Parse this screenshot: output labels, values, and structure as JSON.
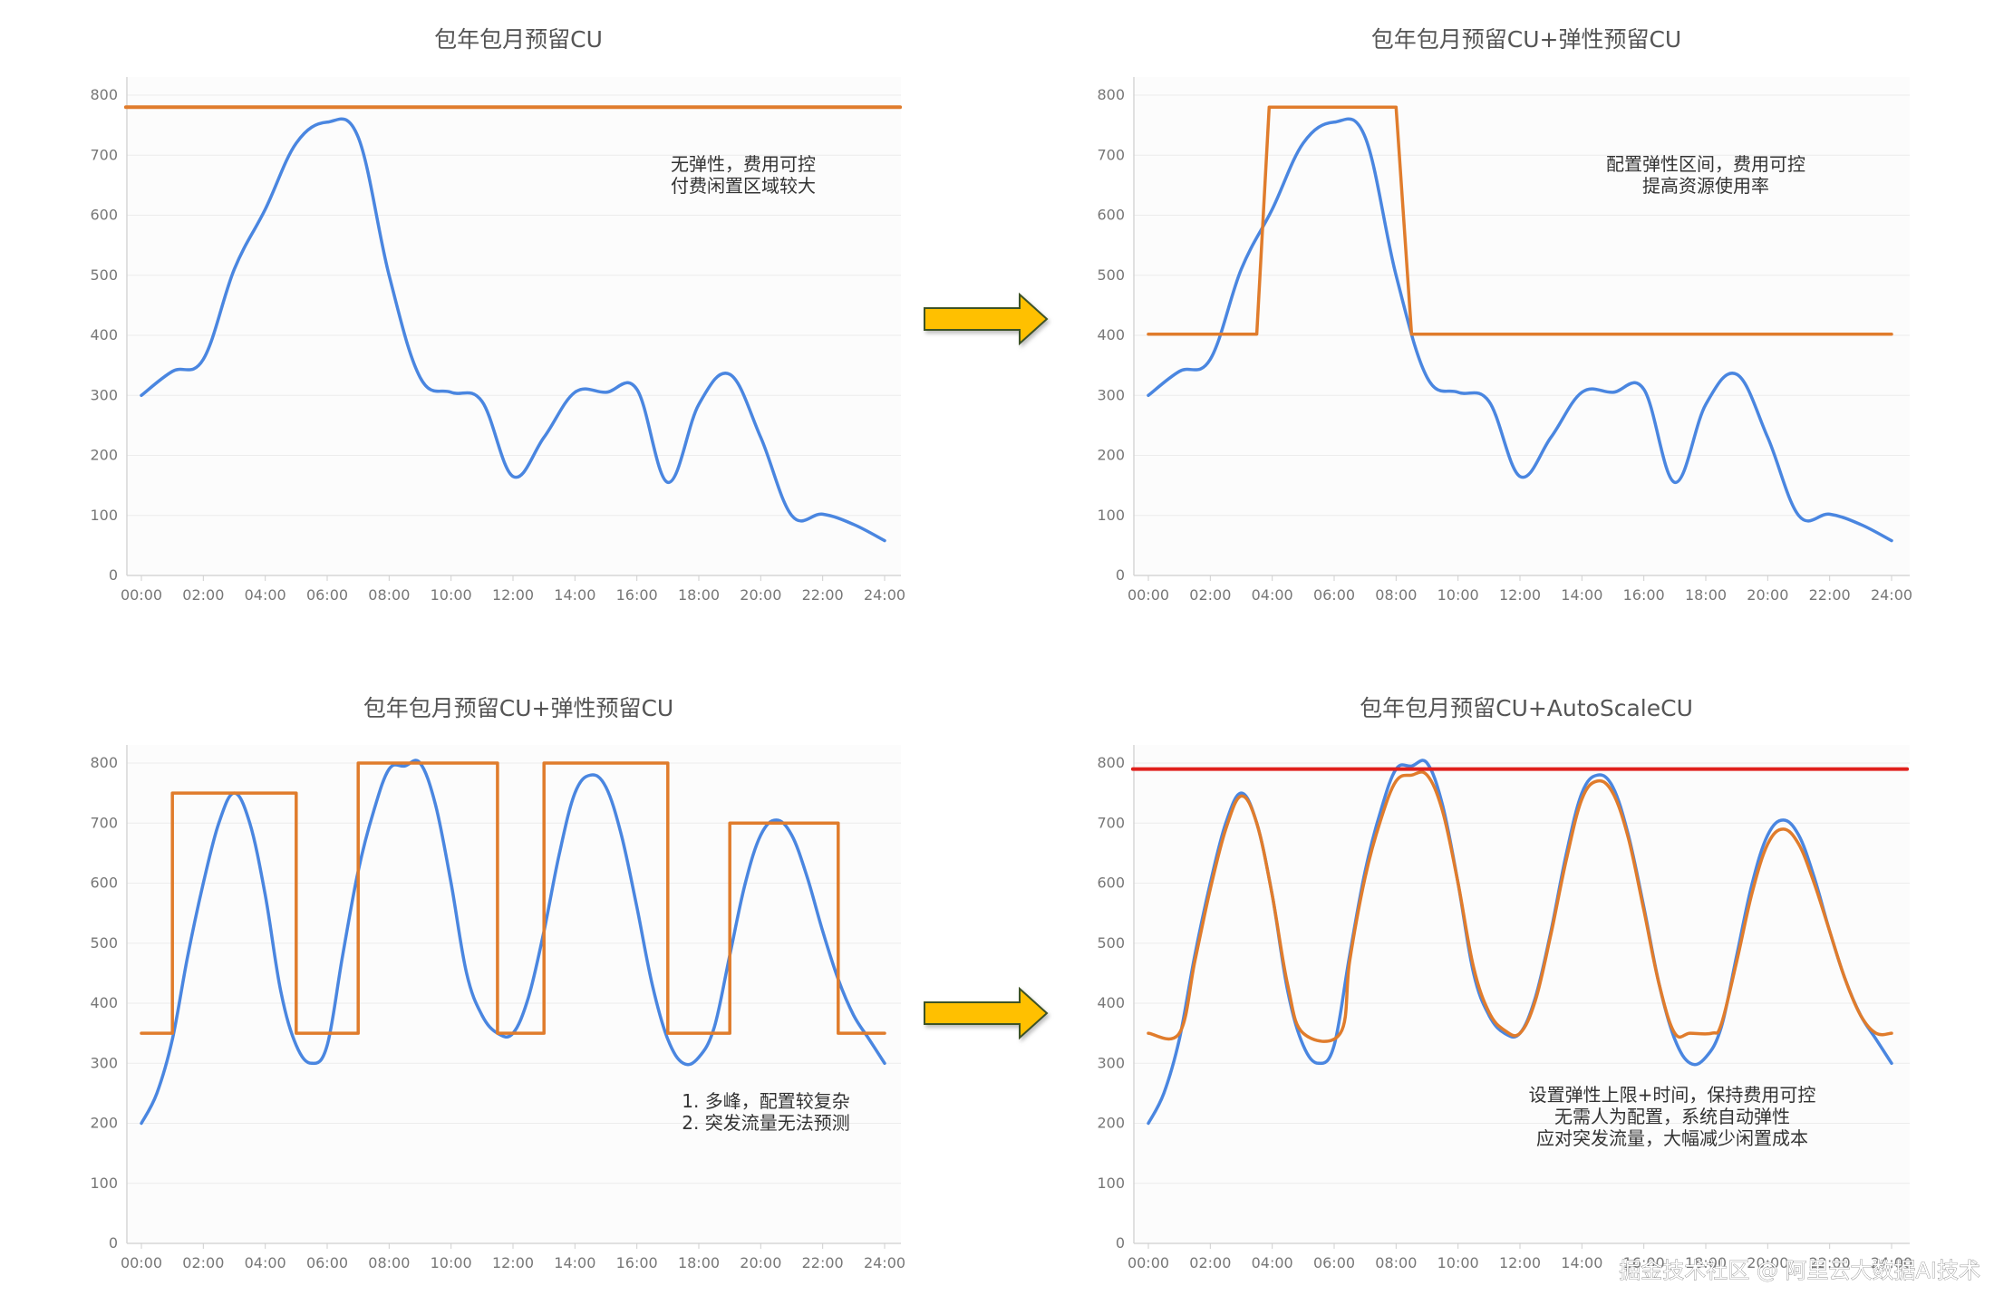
{
  "chart_data": [
    {
      "type": "line",
      "title": "包年包月预留CU",
      "ylim": [
        0,
        800
      ],
      "yticks": [
        "0",
        "100",
        "200",
        "300",
        "400",
        "500",
        "600",
        "700",
        "800"
      ],
      "xticks": [
        "00:00",
        "02:00",
        "04:00",
        "06:00",
        "08:00",
        "10:00",
        "12:00",
        "14:00",
        "16:00",
        "18:00",
        "20:00",
        "22:00",
        "24:00"
      ],
      "annotation": [
        "无弹性，费用可控",
        "付费闲置区域较大"
      ],
      "series": [
        {
          "role": "usage",
          "color": "#4a86e0",
          "shape": "smooth",
          "x": [
            0,
            1,
            2,
            3,
            4,
            5,
            6,
            7,
            8,
            9,
            10,
            11,
            12,
            13,
            14,
            15,
            16,
            17,
            18,
            19,
            20,
            21,
            22,
            23,
            24
          ],
          "y": [
            300,
            340,
            360,
            510,
            610,
            720,
            755,
            730,
            500,
            330,
            305,
            290,
            165,
            230,
            305,
            305,
            310,
            155,
            285,
            335,
            230,
            100,
            102,
            85,
            58
          ]
        },
        {
          "role": "reserved",
          "color": "#e07c2c",
          "shape": "linear",
          "x": [
            -0.5,
            24.5
          ],
          "y": [
            780,
            780
          ]
        }
      ]
    },
    {
      "type": "line",
      "title": "包年包月预留CU+弹性预留CU",
      "ylim": [
        0,
        800
      ],
      "yticks": [
        "0",
        "100",
        "200",
        "300",
        "400",
        "500",
        "600",
        "700",
        "800"
      ],
      "xticks": [
        "00:00",
        "02:00",
        "04:00",
        "06:00",
        "08:00",
        "10:00",
        "12:00",
        "14:00",
        "16:00",
        "18:00",
        "20:00",
        "22:00",
        "24:00"
      ],
      "annotation": [
        "配置弹性区间，费用可控",
        "提高资源使用率"
      ],
      "series": [
        {
          "role": "usage",
          "color": "#4a86e0",
          "shape": "smooth",
          "x": [
            0,
            1,
            2,
            3,
            4,
            5,
            6,
            7,
            8,
            9,
            10,
            11,
            12,
            13,
            14,
            15,
            16,
            17,
            18,
            19,
            20,
            21,
            22,
            23,
            24
          ],
          "y": [
            300,
            340,
            360,
            510,
            610,
            720,
            755,
            730,
            500,
            330,
            305,
            290,
            165,
            230,
            305,
            305,
            310,
            155,
            285,
            335,
            230,
            100,
            102,
            85,
            58
          ]
        },
        {
          "role": "reserved",
          "color": "#e07c2c",
          "shape": "linear",
          "x": [
            0,
            3.5,
            3.9,
            8.0,
            8.5,
            24
          ],
          "y": [
            402,
            402,
            780,
            780,
            402,
            402
          ]
        }
      ]
    },
    {
      "type": "line",
      "title": "包年包月预留CU+弹性预留CU",
      "ylim": [
        0,
        800
      ],
      "yticks": [
        "0",
        "100",
        "200",
        "300",
        "400",
        "500",
        "600",
        "700",
        "800"
      ],
      "xticks": [
        "00:00",
        "02:00",
        "04:00",
        "06:00",
        "08:00",
        "10:00",
        "12:00",
        "14:00",
        "16:00",
        "18:00",
        "20:00",
        "22:00",
        "24:00"
      ],
      "annotation": [
        "1. 多峰，配置较复杂",
        "2. 突发流量无法预测"
      ],
      "series": [
        {
          "role": "usage",
          "color": "#4a86e0",
          "shape": "smooth",
          "x": [
            0,
            0.5,
            1,
            1.5,
            2,
            2.5,
            3,
            3.5,
            4,
            4.5,
            5,
            5.5,
            6,
            6.5,
            7,
            7.5,
            8,
            8.5,
            9,
            9.5,
            10,
            10.5,
            11,
            11.5,
            12,
            12.5,
            13,
            13.5,
            14,
            14.5,
            15,
            15.5,
            16,
            16.5,
            17,
            17.5,
            18,
            18.5,
            19,
            19.5,
            20,
            20.5,
            21,
            21.5,
            22,
            22.5,
            23,
            23.5,
            24
          ],
          "y": [
            200,
            250,
            340,
            480,
            600,
            700,
            750,
            700,
            580,
            420,
            330,
            300,
            330,
            480,
            620,
            720,
            790,
            795,
            800,
            730,
            600,
            450,
            380,
            350,
            350,
            410,
            520,
            650,
            750,
            780,
            760,
            680,
            560,
            430,
            340,
            300,
            310,
            360,
            480,
            600,
            680,
            705,
            680,
            610,
            520,
            440,
            380,
            340,
            300
          ]
        },
        {
          "role": "reserved",
          "color": "#e07c2c",
          "shape": "linear",
          "x": [
            0,
            1,
            1,
            5,
            5,
            7,
            7,
            11.5,
            11.5,
            13,
            13,
            17,
            17,
            19,
            19,
            22.5,
            22.5,
            24
          ],
          "y": [
            350,
            350,
            750,
            750,
            350,
            350,
            800,
            800,
            350,
            350,
            800,
            800,
            350,
            350,
            700,
            700,
            350,
            350
          ]
        }
      ]
    },
    {
      "type": "line",
      "title": "包年包月预留CU+AutoScaleCU",
      "ylim": [
        0,
        800
      ],
      "yticks": [
        "0",
        "100",
        "200",
        "300",
        "400",
        "500",
        "600",
        "700",
        "800"
      ],
      "xticks": [
        "00:00",
        "02:00",
        "04:00",
        "06:00",
        "08:00",
        "10:00",
        "12:00",
        "14:00",
        "16:00",
        "18:00",
        "20:00",
        "22:00",
        "24:00"
      ],
      "annotation": [
        "设置弹性上限+时间，保持费用可控",
        "无需人为配置，系统自动弹性",
        "应对突发流量，大幅减少闲置成本"
      ],
      "series": [
        {
          "role": "usage",
          "color": "#4a86e0",
          "shape": "smooth",
          "x": [
            0,
            0.5,
            1,
            1.5,
            2,
            2.5,
            3,
            3.5,
            4,
            4.5,
            5,
            5.5,
            6,
            6.5,
            7,
            7.5,
            8,
            8.5,
            9,
            9.5,
            10,
            10.5,
            11,
            11.5,
            12,
            12.5,
            13,
            13.5,
            14,
            14.5,
            15,
            15.5,
            16,
            16.5,
            17,
            17.5,
            18,
            18.5,
            19,
            19.5,
            20,
            20.5,
            21,
            21.5,
            22,
            22.5,
            23,
            23.5,
            24
          ],
          "y": [
            200,
            250,
            340,
            480,
            600,
            700,
            750,
            700,
            580,
            420,
            330,
            300,
            330,
            480,
            620,
            720,
            790,
            795,
            800,
            730,
            600,
            450,
            380,
            350,
            350,
            410,
            520,
            650,
            750,
            780,
            760,
            680,
            560,
            430,
            340,
            300,
            310,
            360,
            480,
            600,
            680,
            705,
            680,
            610,
            520,
            440,
            380,
            340,
            300
          ]
        },
        {
          "role": "autoscale",
          "color": "#e07c2c",
          "shape": "smooth",
          "x": [
            0,
            1,
            1.5,
            2,
            2.5,
            3,
            3.5,
            4,
            4.5,
            5,
            6.2,
            6.5,
            7,
            7.5,
            8,
            8.5,
            9,
            9.5,
            10,
            10.5,
            11,
            11.5,
            12,
            12.5,
            13,
            13.5,
            14,
            14.5,
            15,
            15.5,
            16,
            16.5,
            17,
            17.5,
            18.2,
            18.5,
            19,
            19.5,
            20,
            20.5,
            21,
            21.5,
            22,
            22.5,
            23,
            23.5,
            24
          ],
          "y": [
            350,
            350,
            470,
            590,
            690,
            745,
            700,
            580,
            430,
            350,
            350,
            470,
            610,
            705,
            770,
            780,
            780,
            720,
            600,
            460,
            385,
            355,
            350,
            405,
            515,
            640,
            740,
            770,
            750,
            675,
            555,
            430,
            350,
            350,
            350,
            365,
            470,
            585,
            665,
            690,
            665,
            600,
            520,
            440,
            380,
            350,
            350
          ]
        },
        {
          "role": "limit",
          "color": "#e0201c",
          "shape": "linear",
          "x": [
            -0.5,
            24.5
          ],
          "y": [
            790,
            790
          ]
        }
      ]
    }
  ],
  "watermark": "掘金技术社区 @ 阿里云大数据AI技术"
}
